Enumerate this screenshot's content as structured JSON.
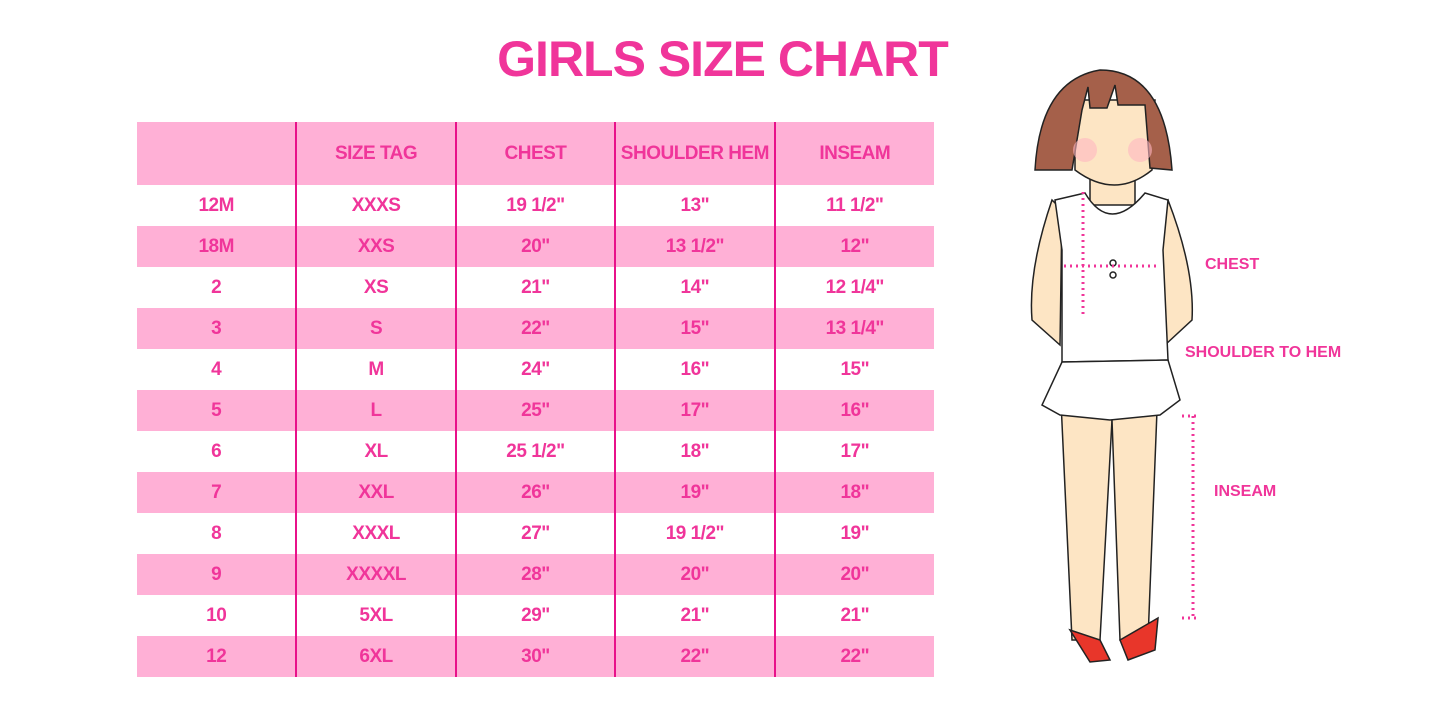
{
  "title": "GIRLS SIZE CHART",
  "colors": {
    "accent": "#f0359a",
    "band": "#ffb0d6",
    "divider": "#e8118a"
  },
  "table": {
    "headers": [
      "",
      "SIZE TAG",
      "CHEST",
      "SHOULDER HEM",
      "INSEAM"
    ],
    "rows": [
      [
        "12M",
        "XXXS",
        "19 1/2\"",
        "13\"",
        "11 1/2\""
      ],
      [
        "18M",
        "XXS",
        "20\"",
        "13 1/2\"",
        "12\""
      ],
      [
        "2",
        "XS",
        "21\"",
        "14\"",
        "12 1/4\""
      ],
      [
        "3",
        "S",
        "22\"",
        "15\"",
        "13 1/4\""
      ],
      [
        "4",
        "M",
        "24\"",
        "16\"",
        "15\""
      ],
      [
        "5",
        "L",
        "25\"",
        "17\"",
        "16\""
      ],
      [
        "6",
        "XL",
        "25 1/2\"",
        "18\"",
        "17\""
      ],
      [
        "7",
        "XXL",
        "26\"",
        "19\"",
        "18\""
      ],
      [
        "8",
        "XXXL",
        "27\"",
        "19 1/2\"",
        "19\""
      ],
      [
        "9",
        "XXXXL",
        "28\"",
        "20\"",
        "20\""
      ],
      [
        "10",
        "5XL",
        "29\"",
        "21\"",
        "21\""
      ],
      [
        "12",
        "6XL",
        "30\"",
        "22\"",
        "22\""
      ]
    ]
  },
  "figure": {
    "labels": {
      "chest": "CHEST",
      "shoulder_to_hem": "SHOULDER TO HEM",
      "inseam": "INSEAM"
    }
  }
}
